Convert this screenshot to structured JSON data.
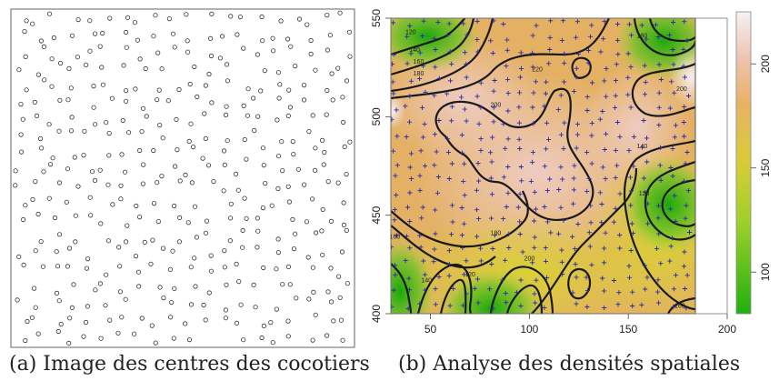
{
  "figure": {
    "caption_a": "(a)  Image des centres des cocotiers",
    "caption_b": "(b)  Analyse des densités spatiales"
  },
  "chart_data": [
    {
      "type": "scatter",
      "title": "",
      "description_values": "regularly spaced tree centres (open circles)",
      "marker": "circle",
      "seed": 7,
      "n_points": 390
    },
    {
      "type": "heatmap",
      "title": "",
      "xlabel": "",
      "ylabel": "",
      "xlim": [
        30,
        200
      ],
      "ylim": [
        400,
        550
      ],
      "x_ticks": [
        "50",
        "100",
        "150",
        "200"
      ],
      "y_ticks": [
        "400",
        "450",
        "500",
        "550"
      ],
      "colorbar_ticks": [
        "100",
        "150",
        "200"
      ],
      "colorbar_range": [
        80,
        225
      ],
      "colors": {
        "low": "#22b014",
        "mid": "#dcc83c",
        "high": "#f4e8ec",
        "contour": "#1a1a1a",
        "points": "#2a2aa8"
      },
      "contour_labels": [
        {
          "x": 40,
          "y": 542,
          "label": "120"
        },
        {
          "x": 42,
          "y": 533,
          "label": "140"
        },
        {
          "x": 44,
          "y": 527,
          "label": "160"
        },
        {
          "x": 44,
          "y": 521,
          "label": "180"
        },
        {
          "x": 104,
          "y": 523,
          "label": "220"
        },
        {
          "x": 83,
          "y": 505,
          "label": "200"
        },
        {
          "x": 177,
          "y": 513,
          "label": "200"
        },
        {
          "x": 157,
          "y": 540,
          "label": "180"
        },
        {
          "x": 157,
          "y": 484,
          "label": "140"
        },
        {
          "x": 158,
          "y": 460,
          "label": "120"
        },
        {
          "x": 83,
          "y": 440,
          "label": "180"
        },
        {
          "x": 100,
          "y": 427,
          "label": "200"
        },
        {
          "x": 48,
          "y": 416,
          "label": "140"
        },
        {
          "x": 70,
          "y": 419,
          "label": "120"
        },
        {
          "x": 32,
          "y": 438,
          "label": "160"
        },
        {
          "x": 176,
          "y": 403,
          "label": "160"
        }
      ]
    }
  ]
}
